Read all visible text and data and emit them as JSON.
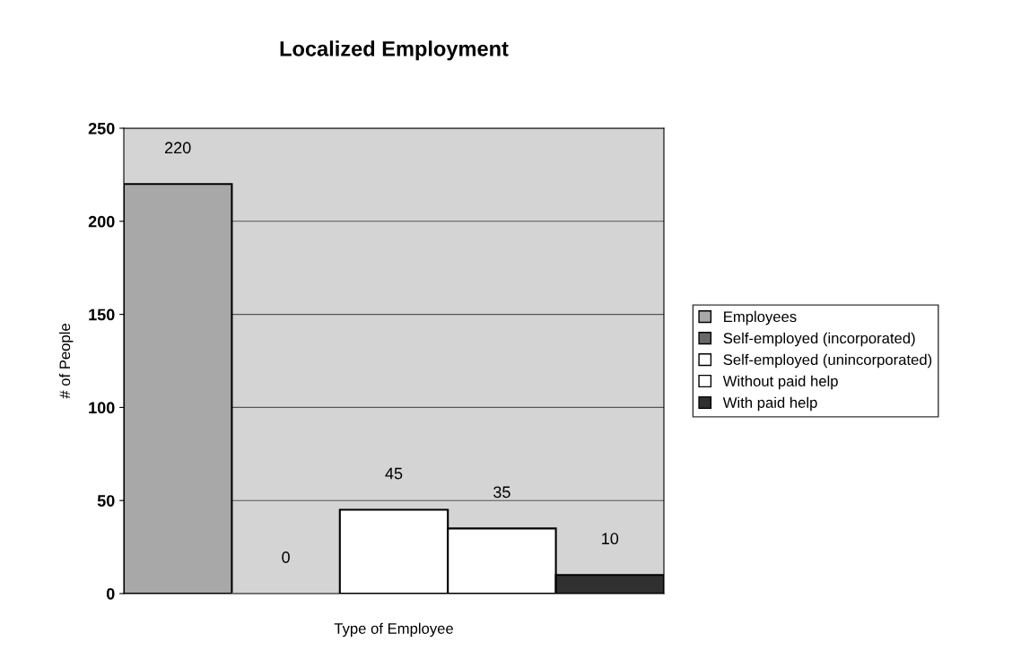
{
  "chart_data": {
    "type": "bar",
    "title": "Localized Employment",
    "xlabel": "Type of Employee",
    "ylabel": "# of People",
    "categories": [
      null
    ],
    "series": [
      {
        "name": "Employees",
        "color": "#a8a8a8",
        "values": [
          220
        ]
      },
      {
        "name": "Self-employed (incorporated)",
        "color": "#686868",
        "values": [
          0
        ]
      },
      {
        "name": "Self-employed (unincorporated)",
        "color": "#ffffff",
        "values": [
          45
        ]
      },
      {
        "name": "Without paid help",
        "color": "#ffffff",
        "values": [
          35
        ]
      },
      {
        "name": "With paid help",
        "color": "#303030",
        "values": [
          10
        ]
      }
    ],
    "ylim": [
      0,
      250
    ],
    "yticks": [
      0,
      50,
      100,
      150,
      200,
      250
    ],
    "grid": "y",
    "legend": "right",
    "data_labels": true
  }
}
